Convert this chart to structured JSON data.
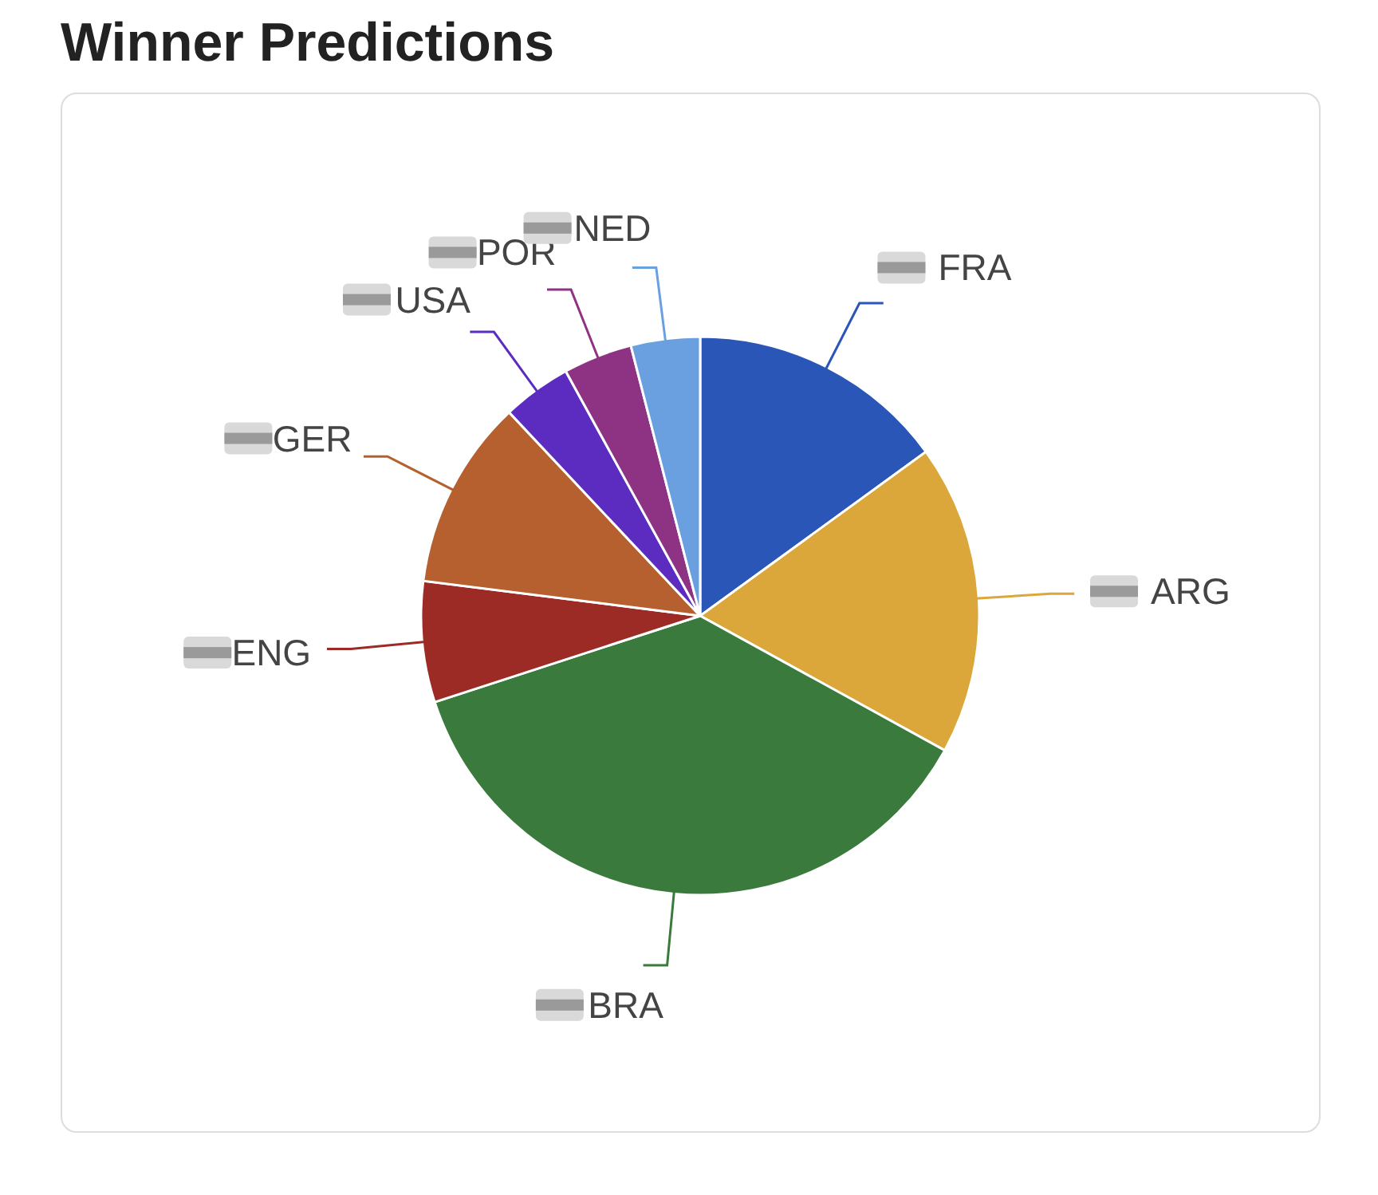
{
  "chart_data": {
    "type": "pie",
    "title": "Winner Predictions",
    "categories": [
      "FRA",
      "ARG",
      "BRA",
      "ENG",
      "GER",
      "USA",
      "POR",
      "NED"
    ],
    "values": [
      15,
      18,
      37,
      7,
      11,
      4,
      4,
      4
    ],
    "colors": [
      "#2a56b8",
      "#dba73a",
      "#3a7a3c",
      "#9c2a25",
      "#b5602e",
      "#5b2cbf",
      "#8e3383",
      "#6aa0e0"
    ],
    "legend": false
  }
}
